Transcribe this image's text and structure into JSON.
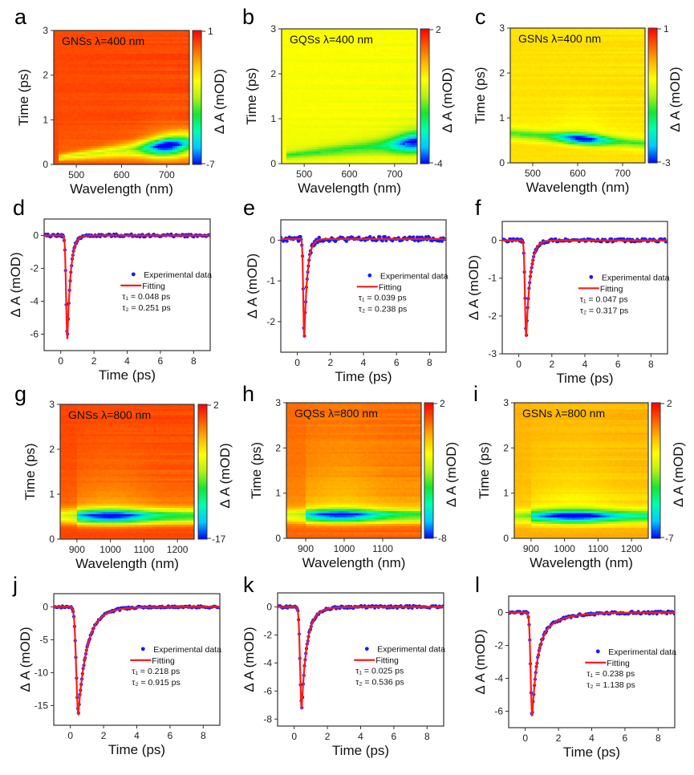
{
  "figure": {
    "colors": {
      "data_points": "#1a1aff",
      "fit_line": "#ff1a1a",
      "frame": "#333333"
    },
    "colormap": [
      "#0000ff",
      "#00c8ff",
      "#00ffb0",
      "#14e632",
      "#b4f014",
      "#ffff00",
      "#ffb400",
      "#ff5a00",
      "#ff0000"
    ]
  },
  "chart_data": [
    {
      "id": "a",
      "type": "heatmap",
      "panel_letter": "a",
      "title": "GNSs  λ=400 nm",
      "xlabel": "Wavelength (nm)",
      "ylabel": "Time (ps)",
      "colorbar_label": "Δ A (mOD)",
      "xlim": [
        450,
        750
      ],
      "ylim": [
        0,
        3
      ],
      "xticks": [
        500,
        600,
        700
      ],
      "yticks": [
        0,
        1,
        2,
        3
      ],
      "colorbar_range": [
        -7,
        1
      ],
      "colorbar_ticks": [
        "1",
        "-7"
      ],
      "background_value": 0.2,
      "feature": {
        "type": "sloped",
        "lam_start": 460,
        "t_start": 0.15,
        "lam_end": 750,
        "t_end": 0.45,
        "min_value": -7,
        "min_center_lam": 700,
        "width_start": 0.06,
        "width_end": 0.25
      }
    },
    {
      "id": "b",
      "type": "heatmap",
      "panel_letter": "b",
      "title": "GQSs λ=400 nm",
      "xlabel": "Wavelength (nm)",
      "ylabel": "Time (ps)",
      "colorbar_label": "Δ A (mOD)",
      "xlim": [
        450,
        750
      ],
      "ylim": [
        0,
        3
      ],
      "xticks": [
        500,
        600,
        700
      ],
      "yticks": [
        0,
        1,
        2,
        3
      ],
      "colorbar_range": [
        -4,
        2
      ],
      "colorbar_ticks": [
        "2",
        "-4"
      ],
      "background_value": -0.3,
      "feature": {
        "type": "sloped",
        "lam_start": 460,
        "t_start": 0.18,
        "lam_end": 750,
        "t_end": 0.47,
        "min_value": -3.8,
        "min_center_lam": 745,
        "width_start": 0.08,
        "width_end": 0.22
      }
    },
    {
      "id": "c",
      "type": "heatmap",
      "panel_letter": "c",
      "title": "GSNs  λ=400 nm",
      "xlabel": "Wavelength (nm)",
      "ylabel": "Time (ps)",
      "colorbar_label": "Δ A (mOD)",
      "xlim": [
        450,
        750
      ],
      "ylim": [
        0,
        3
      ],
      "xticks": [
        500,
        600,
        700
      ],
      "yticks": [
        0,
        1,
        2,
        3
      ],
      "colorbar_range": [
        -3,
        1
      ],
      "colorbar_ticks": [
        "1",
        "-3"
      ],
      "background_value": -0.3,
      "feature": {
        "type": "sloped",
        "lam_start": 450,
        "t_start": 0.65,
        "lam_end": 750,
        "t_end": 0.42,
        "min_value": -3,
        "min_center_lam": 610,
        "width_start": 0.12,
        "width_end": 0.12
      }
    },
    {
      "id": "d",
      "type": "scatter",
      "panel_letter": "d",
      "xlabel": "Time (ps)",
      "ylabel": "Δ A (mOD)",
      "xlim": [
        -1,
        9
      ],
      "ylim": [
        -7,
        1
      ],
      "xticks": [
        0,
        2,
        4,
        6,
        8
      ],
      "yticks": [
        0,
        -2,
        -4,
        -6
      ],
      "legend": {
        "points_label": "Experimental data",
        "line_label": "Fitting",
        "tau1": "τ₁ = 0.048 ps",
        "tau2": "τ₂ = 0.251 ps",
        "placement": "center-right"
      },
      "fit": {
        "t0": 0.4,
        "peak": -6.3,
        "rise": 0.048,
        "decay": 0.251
      },
      "noise_amplitude": 0.08
    },
    {
      "id": "e",
      "type": "scatter",
      "panel_letter": "e",
      "xlabel": "Time (ps)",
      "ylabel": "Δ A (mOD)",
      "xlim": [
        -1,
        9
      ],
      "ylim": [
        -2.75,
        0.5
      ],
      "xticks": [
        0,
        2,
        4,
        6,
        8
      ],
      "yticks": [
        0,
        -1,
        -2
      ],
      "legend": {
        "points_label": "Experimental data",
        "line_label": "Fitting",
        "tau1": "τ₁ = 0.039 ps",
        "tau2": "τ₂ = 0.238 ps",
        "placement": "center-right"
      },
      "fit": {
        "t0": 0.42,
        "peak": -2.42,
        "rise": 0.039,
        "decay": 0.238
      },
      "baseline": 0.03,
      "noise_amplitude": 0.06
    },
    {
      "id": "f",
      "type": "scatter",
      "panel_letter": "f",
      "xlabel": "Time (ps)",
      "ylabel": "Δ A (mOD)",
      "xlim": [
        -1,
        9
      ],
      "ylim": [
        -3,
        0.5
      ],
      "xticks": [
        0,
        2,
        4,
        6,
        8
      ],
      "yticks": [
        0,
        -1,
        -2,
        -3
      ],
      "legend": {
        "points_label": "Experimental data",
        "line_label": "Fitting",
        "tau1": "τ₁ = 0.047 ps",
        "tau2": "τ₂ = 0.317 ps",
        "placement": "center-right"
      },
      "fit": {
        "t0": 0.45,
        "peak": -2.55,
        "rise": 0.047,
        "decay": 0.317
      },
      "noise_amplitude": 0.04
    },
    {
      "id": "g",
      "type": "heatmap",
      "panel_letter": "g",
      "title": "GNSs  λ=800 nm",
      "xlabel": "Wavelength (nm)",
      "ylabel": "Time (ps)",
      "colorbar_label": "Δ A (mOD)",
      "xlim": [
        850,
        1250
      ],
      "ylim": [
        0,
        3
      ],
      "xticks": [
        900,
        1000,
        1100,
        1200
      ],
      "yticks": [
        0,
        1,
        2,
        3
      ],
      "colorbar_range": [
        -17,
        2
      ],
      "colorbar_ticks": [
        "2",
        "-17"
      ],
      "background_value": 0.3,
      "feature": {
        "type": "flat",
        "t_center": 0.5,
        "min_value": -16.5,
        "min_center_lam": 1000,
        "width": 0.16,
        "tail": 0.9
      }
    },
    {
      "id": "h",
      "type": "heatmap",
      "panel_letter": "h",
      "title": "GQSs  λ=800 nm",
      "xlabel": "Wavelength (nm)",
      "ylabel": "Time (ps)",
      "colorbar_label": "Δ A (mOD)",
      "xlim": [
        850,
        1200
      ],
      "ylim": [
        0,
        3
      ],
      "xticks": [
        900,
        1000,
        1100
      ],
      "yticks": [
        0,
        1,
        2,
        3
      ],
      "colorbar_range": [
        -8,
        2
      ],
      "colorbar_ticks": [
        "2",
        "-8"
      ],
      "background_value": 0.6,
      "feature": {
        "type": "flat",
        "t_center": 0.5,
        "min_value": -7.6,
        "min_center_lam": 990,
        "width": 0.15,
        "tail": 1.2
      }
    },
    {
      "id": "i",
      "type": "heatmap",
      "panel_letter": "i",
      "title": "GSNs  λ=800 nm",
      "xlabel": "Wavelength (nm)",
      "ylabel": "Time (ps)",
      "colorbar_label": "Δ A (mOD)",
      "xlim": [
        850,
        1250
      ],
      "ylim": [
        0,
        3
      ],
      "xticks": [
        900,
        1000,
        1100,
        1200
      ],
      "yticks": [
        0,
        1,
        2,
        3
      ],
      "colorbar_range": [
        -7,
        2
      ],
      "colorbar_ticks": [
        "2",
        "-7"
      ],
      "background_value": -0.2,
      "feature": {
        "type": "flat",
        "t_center": 0.48,
        "min_value": -6.8,
        "min_center_lam": 1030,
        "width": 0.15,
        "tail": 1.0
      }
    },
    {
      "id": "j",
      "type": "scatter",
      "panel_letter": "j",
      "xlabel": "Time (ps)",
      "ylabel": "Δ A (mOD)",
      "xlim": [
        -1,
        9
      ],
      "ylim": [
        -18,
        2
      ],
      "xticks": [
        0,
        2,
        4,
        6,
        8
      ],
      "yticks": [
        0,
        -5,
        -10,
        -15
      ],
      "legend": {
        "points_label": "Experimental data",
        "line_label": "Fitting",
        "tau1": "τ₁ = 0.218 ps",
        "tau2": "τ₂ = 0.915 ps",
        "placement": "center-right"
      },
      "fit": {
        "t0": 0.48,
        "peak": -16.2,
        "rise": 0.08,
        "decay": 0.45,
        "slow_decay": 0.915,
        "slow_fraction": 0.3
      },
      "noise_amplitude": 0.15
    },
    {
      "id": "k",
      "type": "scatter",
      "panel_letter": "k",
      "xlabel": "Time (ps)",
      "ylabel": "Δ A (mOD)",
      "xlim": [
        -1,
        9
      ],
      "ylim": [
        -8.5,
        1
      ],
      "xticks": [
        0,
        2,
        4,
        6,
        8
      ],
      "yticks": [
        0,
        -2,
        -4,
        -6,
        -8
      ],
      "legend": {
        "points_label": "Experimental data",
        "line_label": "Fitting",
        "tau1": "τ₁ = 0.025 ps",
        "tau2": "τ₂ = 0.536 ps",
        "placement": "center-right"
      },
      "fit": {
        "t0": 0.45,
        "peak": -7.3,
        "rise": 0.06,
        "decay": 0.25,
        "slow_decay": 0.536,
        "slow_fraction": 0.35
      },
      "noise_amplitude": 0.08
    },
    {
      "id": "l",
      "type": "scatter",
      "panel_letter": "l",
      "xlabel": "Time (ps)",
      "ylabel": "Δ A (mOD)",
      "xlim": [
        -1,
        9
      ],
      "ylim": [
        -7,
        1
      ],
      "xticks": [
        0,
        2,
        4,
        6,
        8
      ],
      "yticks": [
        0,
        -2,
        -4,
        -6
      ],
      "legend": {
        "points_label": "Experimental data",
        "line_label": "Fitting",
        "tau1": "τ₁ = 0.238 ps",
        "tau2": "τ₂ = 1.138 ps",
        "placement": "center-right"
      },
      "fit": {
        "t0": 0.42,
        "peak": -6.3,
        "rise": 0.06,
        "decay": 0.28,
        "slow_decay": 1.138,
        "slow_fraction": 0.3
      },
      "noise_amplitude": 0.08
    }
  ]
}
